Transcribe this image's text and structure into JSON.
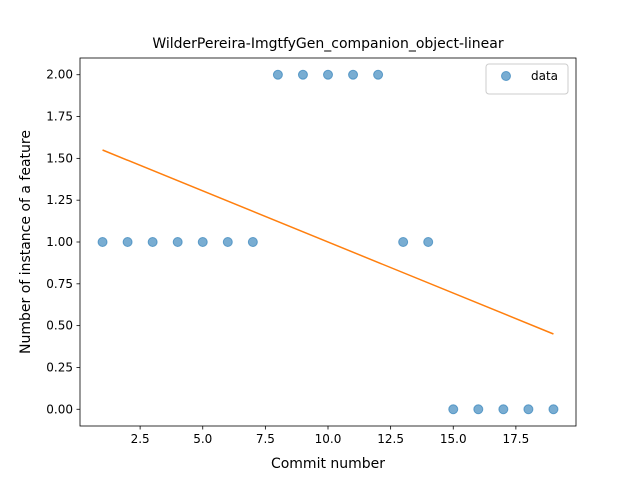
{
  "chart_data": {
    "type": "scatter",
    "title": "WilderPereira-ImgtfyGen_companion_object-linear",
    "xlabel": "Commit number",
    "ylabel": "Number of instance of a feature",
    "xlim": [
      0.1,
      19.9
    ],
    "ylim": [
      -0.1,
      2.1
    ],
    "xticks": [
      2.5,
      5.0,
      7.5,
      10.0,
      12.5,
      15.0,
      17.5
    ],
    "xtick_labels": [
      "2.5",
      "5.0",
      "7.5",
      "10.0",
      "12.5",
      "15.0",
      "17.5"
    ],
    "yticks": [
      0.0,
      0.25,
      0.5,
      0.75,
      1.0,
      1.25,
      1.5,
      1.75,
      2.0
    ],
    "ytick_labels": [
      "0.00",
      "0.25",
      "0.50",
      "0.75",
      "1.00",
      "1.25",
      "1.50",
      "1.75",
      "2.00"
    ],
    "grid": false,
    "legend_position": "top-right",
    "series": [
      {
        "name": "data",
        "kind": "scatter",
        "color": "#1f77b4",
        "x": [
          1,
          2,
          3,
          4,
          5,
          6,
          7,
          8,
          9,
          10,
          11,
          12,
          13,
          14,
          15,
          16,
          17,
          18,
          19
        ],
        "y": [
          1,
          1,
          1,
          1,
          1,
          1,
          1,
          2,
          2,
          2,
          2,
          2,
          1,
          1,
          0,
          0,
          0,
          0,
          0
        ]
      },
      {
        "kind": "line",
        "color": "#ff7f0e",
        "x": [
          1,
          19
        ],
        "y": [
          1.55,
          0.45
        ]
      }
    ]
  }
}
